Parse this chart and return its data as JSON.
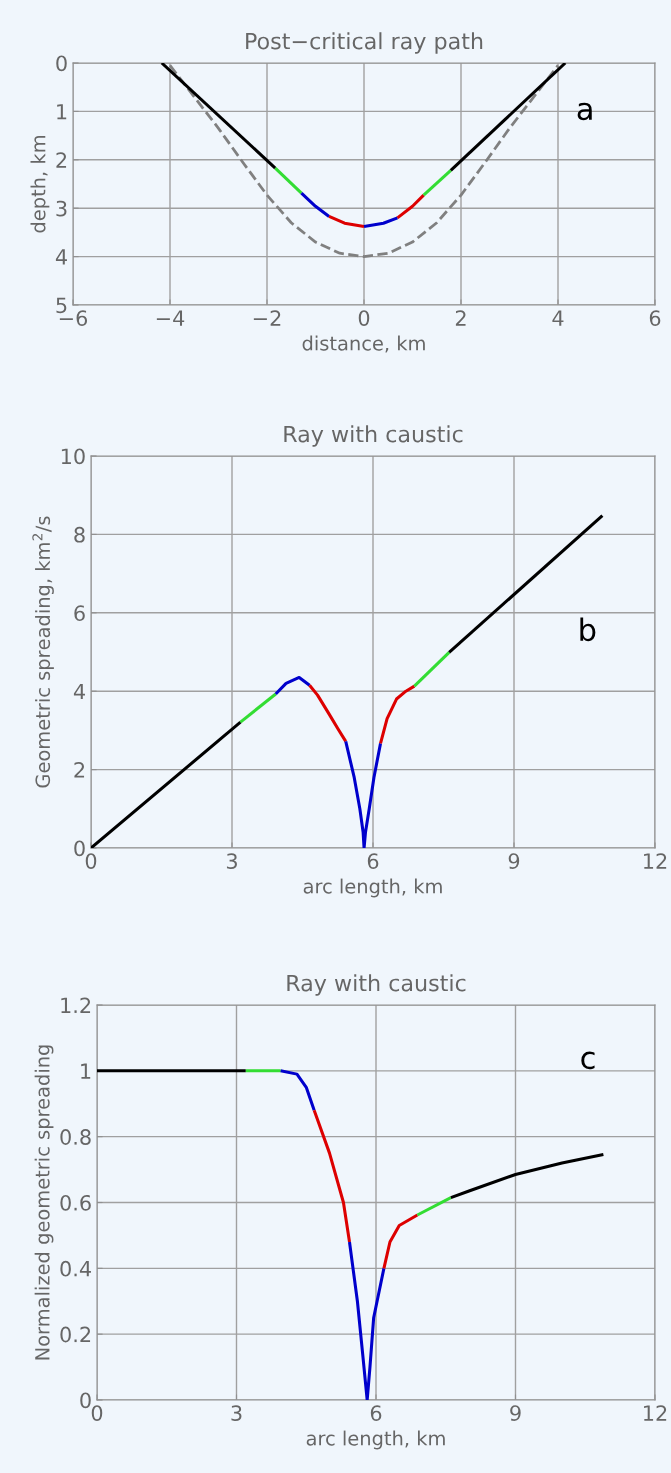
{
  "chart_data": [
    {
      "type": "line",
      "title": "Post−critical ray path",
      "xlabel": "distance, km",
      "ylabel": "depth, km",
      "annotations": [
        "a"
      ],
      "xlim": [
        -6,
        6
      ],
      "xticks": [
        {
          "value": -6,
          "label": "−6"
        },
        {
          "value": -4,
          "label": "−4"
        },
        {
          "value": -2,
          "label": "−2"
        },
        0,
        2,
        4,
        6
      ],
      "ylim": [
        5,
        0
      ],
      "yticks": [
        0,
        1,
        2,
        3,
        4,
        5
      ],
      "grid": true,
      "line_style": "solid",
      "series": [
        {
          "color": "#808080",
          "line_style": "dashed",
          "x": [
            -4.0,
            -3.5,
            -3.0,
            -2.5,
            -2.0,
            -1.5,
            -1.0,
            -0.5,
            0.0,
            0.5,
            1.0,
            1.5,
            2.0,
            2.5,
            3.0,
            3.5,
            4.0
          ],
          "values": [
            0.05,
            0.7,
            1.35,
            2.05,
            2.73,
            3.3,
            3.7,
            3.93,
            4.0,
            3.93,
            3.7,
            3.3,
            2.73,
            2.05,
            1.35,
            0.7,
            0.05
          ]
        },
        {
          "color": "#000000",
          "x": [
            -4.17,
            -1.83
          ],
          "values": [
            0,
            2.17
          ]
        },
        {
          "color": "#33dd33",
          "x": [
            -1.83,
            -1.29
          ],
          "values": [
            2.17,
            2.69
          ]
        },
        {
          "color": "#0000cc",
          "x": [
            -1.29,
            -1.0,
            -0.72
          ],
          "values": [
            2.69,
            2.96,
            3.17
          ]
        },
        {
          "color": "#dd0000",
          "x": [
            -0.72,
            -0.4,
            0.0
          ],
          "values": [
            3.17,
            3.31,
            3.38
          ]
        },
        {
          "color": "#0000cc",
          "x": [
            0.0,
            0.4,
            0.69
          ],
          "values": [
            3.38,
            3.31,
            3.2
          ]
        },
        {
          "color": "#dd0000",
          "x": [
            0.69,
            1.0,
            1.23
          ],
          "values": [
            3.2,
            2.96,
            2.73
          ]
        },
        {
          "color": "#33dd33",
          "x": [
            1.23,
            1.79
          ],
          "values": [
            2.73,
            2.22
          ]
        },
        {
          "color": "#000000",
          "x": [
            1.79,
            4.15
          ],
          "values": [
            2.22,
            0
          ]
        }
      ]
    },
    {
      "type": "line",
      "title": "Ray with caustic",
      "xlabel": "arc length, km",
      "ylabel": "Geometric spreading, km$^{2}$/s",
      "annotations": [
        "b"
      ],
      "xlim": [
        0,
        12
      ],
      "xticks": [
        0,
        3,
        6,
        9,
        12
      ],
      "ylim": [
        0,
        10
      ],
      "yticks": [
        0,
        2,
        4,
        6,
        8,
        10
      ],
      "grid": true,
      "series": [
        {
          "color": "#000000",
          "x": [
            0,
            3.18
          ],
          "values": [
            0,
            3.21
          ]
        },
        {
          "color": "#33dd33",
          "x": [
            3.18,
            3.93
          ],
          "values": [
            3.21,
            3.93
          ]
        },
        {
          "color": "#0000cc",
          "x": [
            3.93,
            4.15,
            4.43,
            4.65
          ],
          "values": [
            3.93,
            4.2,
            4.35,
            4.15
          ]
        },
        {
          "color": "#dd0000",
          "x": [
            4.65,
            4.82,
            5.07,
            5.25,
            5.42
          ],
          "values": [
            4.15,
            3.9,
            3.41,
            3.05,
            2.72
          ]
        },
        {
          "color": "#0000cc",
          "x": [
            5.42,
            5.6,
            5.72,
            5.79,
            5.81,
            5.84,
            5.92,
            6.02,
            6.16
          ],
          "values": [
            2.72,
            1.8,
            1.0,
            0.4,
            0,
            0.4,
            1.0,
            1.8,
            2.67
          ]
        },
        {
          "color": "#dd0000",
          "x": [
            6.16,
            6.3,
            6.5,
            6.7,
            6.88
          ],
          "values": [
            2.67,
            3.3,
            3.8,
            4.0,
            4.13
          ]
        },
        {
          "color": "#33dd33",
          "x": [
            6.88,
            7.62
          ],
          "values": [
            4.13,
            4.99
          ]
        },
        {
          "color": "#000000",
          "x": [
            7.62,
            10.88
          ],
          "values": [
            4.99,
            8.48
          ]
        }
      ]
    },
    {
      "type": "line",
      "title": "Ray with caustic",
      "xlabel": "arc length, km",
      "ylabel": "Normalized geometric spreading",
      "annotations": [
        "c"
      ],
      "xlim": [
        0,
        12
      ],
      "xticks": [
        0,
        3,
        6,
        9,
        12
      ],
      "ylim": [
        0,
        1.2
      ],
      "yticks": [
        0,
        0.2,
        0.4,
        0.6,
        0.8,
        1,
        1.2
      ],
      "grid": true,
      "series": [
        {
          "color": "#000000",
          "x": [
            0,
            3.2
          ],
          "values": [
            1,
            1
          ]
        },
        {
          "color": "#33dd33",
          "x": [
            3.2,
            3.95
          ],
          "values": [
            1,
            1
          ]
        },
        {
          "color": "#0000cc",
          "x": [
            3.95,
            4.3,
            4.5,
            4.67
          ],
          "values": [
            1,
            0.99,
            0.95,
            0.88
          ]
        },
        {
          "color": "#dd0000",
          "x": [
            4.67,
            5.0,
            5.3,
            5.43
          ],
          "values": [
            0.88,
            0.75,
            0.6,
            0.48
          ]
        },
        {
          "color": "#0000cc",
          "x": [
            5.43,
            5.6,
            5.72,
            5.81,
            5.87,
            5.95,
            6.17
          ],
          "values": [
            0.48,
            0.3,
            0.13,
            0,
            0.1,
            0.25,
            0.4
          ]
        },
        {
          "color": "#dd0000",
          "x": [
            6.17,
            6.3,
            6.5,
            6.89
          ],
          "values": [
            0.4,
            0.48,
            0.53,
            0.562
          ]
        },
        {
          "color": "#33dd33",
          "x": [
            6.89,
            7.61
          ],
          "values": [
            0.562,
            0.615
          ]
        },
        {
          "color": "#000000",
          "x": [
            7.61,
            8.0,
            9.0,
            10.0,
            10.89
          ],
          "values": [
            0.615,
            0.635,
            0.685,
            0.72,
            0.746
          ]
        }
      ]
    }
  ]
}
